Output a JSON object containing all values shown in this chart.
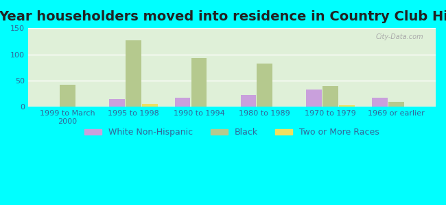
{
  "title": "Year householders moved into residence in Country Club Hills",
  "categories": [
    "1999 to March\n2000",
    "1995 to 1998",
    "1990 to 1994",
    "1980 to 1989",
    "1970 to 1979",
    "1969 or earlier"
  ],
  "series": {
    "White Non-Hispanic": [
      0,
      15,
      18,
      22,
      33,
      17
    ],
    "Black": [
      42,
      127,
      93,
      82,
      40,
      9
    ],
    "Two or More Races": [
      0,
      6,
      0,
      0,
      3,
      0
    ]
  },
  "colors": {
    "White Non-Hispanic": "#c9a0dc",
    "Black": "#b5c98e",
    "Two or More Races": "#f0e060"
  },
  "ylim": [
    0,
    150
  ],
  "yticks": [
    0,
    50,
    100,
    150
  ],
  "background_color": "#00ffff",
  "plot_bg_color": "#dff0d8",
  "watermark": "City-Data.com",
  "bar_width": 0.25,
  "title_fontsize": 14,
  "legend_fontsize": 9,
  "tick_fontsize": 8
}
